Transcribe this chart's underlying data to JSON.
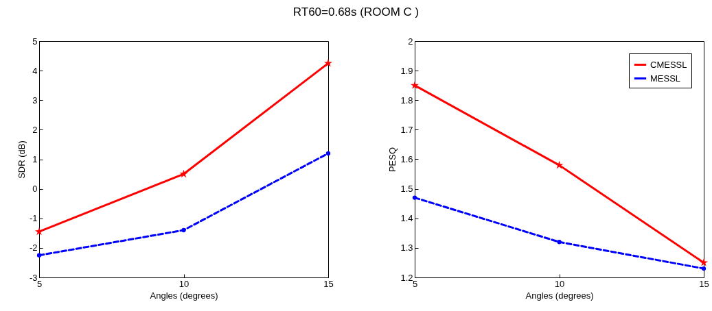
{
  "chart_data": [
    {
      "type": "line",
      "title": "RT60=0.68s (ROOM C )",
      "xlabel": "Angles (degrees)",
      "ylabel": "SDR (dB)",
      "x": [
        5,
        10,
        15
      ],
      "xlim": [
        5,
        15
      ],
      "xticks": [
        5,
        10,
        15
      ],
      "ylim": [
        -3,
        5
      ],
      "yticks": [
        -3,
        -2,
        -1,
        0,
        1,
        2,
        3,
        4,
        5
      ],
      "grid": false,
      "legend": false,
      "series": [
        {
          "color": "#ff0000",
          "marker": "star",
          "line_style": "solid",
          "values": [
            -1.45,
            0.5,
            4.25
          ]
        },
        {
          "color": "#0000ff",
          "marker": "circle",
          "line_style": "dashed",
          "values": [
            -2.25,
            -1.4,
            1.2
          ]
        }
      ]
    },
    {
      "type": "line",
      "xlabel": "Angles (degrees)",
      "ylabel": "PESQ",
      "x": [
        5,
        10,
        15
      ],
      "xlim": [
        5,
        15
      ],
      "xticks": [
        5,
        10,
        15
      ],
      "ylim": [
        1.2,
        2
      ],
      "yticks": [
        1.2,
        1.3,
        1.4,
        1.5,
        1.6,
        1.7,
        1.8,
        1.9,
        2
      ],
      "grid": false,
      "legend": "top right",
      "series": [
        {
          "name": "CMESSL",
          "color": "#ff0000",
          "marker": "star",
          "line_style": "solid",
          "values": [
            1.85,
            1.58,
            1.25
          ]
        },
        {
          "name": "MESSL",
          "color": "#0000ff",
          "marker": "circle",
          "line_style": "dashed",
          "values": [
            1.47,
            1.32,
            1.23
          ]
        }
      ]
    }
  ]
}
